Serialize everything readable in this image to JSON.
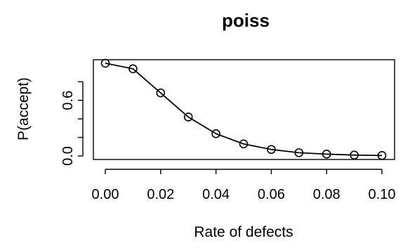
{
  "chart_data": {
    "type": "line",
    "title": "poiss",
    "xlabel": "Rate of defects",
    "ylabel": "P(accept)",
    "x": [
      0.0,
      0.01,
      0.02,
      0.03,
      0.04,
      0.05,
      0.06,
      0.07,
      0.08,
      0.09,
      0.1
    ],
    "series": [
      {
        "values": [
          1.0,
          0.94,
          0.68,
          0.42,
          0.24,
          0.13,
          0.07,
          0.035,
          0.02,
          0.01,
          0.005
        ]
      }
    ],
    "xticks": [
      0.0,
      0.02,
      0.04,
      0.06,
      0.08,
      0.1
    ],
    "xtick_labels": [
      "0.00",
      "0.02",
      "0.04",
      "0.06",
      "0.08",
      "0.10"
    ],
    "yticks": [
      0.0,
      0.2,
      0.4,
      0.6,
      0.8
    ],
    "ytick_labels": [
      "0.0",
      "",
      "",
      "0.6",
      ""
    ],
    "xlim": [
      0.0,
      0.1
    ],
    "ylim": [
      0.0,
      1.0
    ],
    "markers": "open-circle",
    "grid": false
  }
}
